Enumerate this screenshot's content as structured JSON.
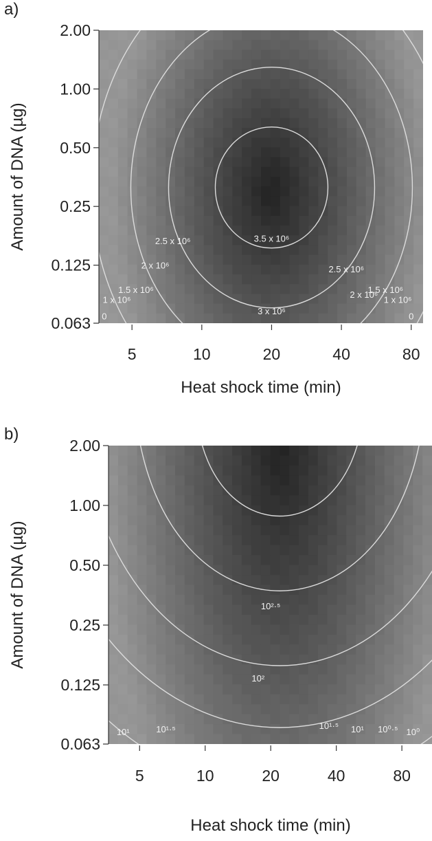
{
  "chart_data": [
    {
      "panel_label": "a)",
      "type": "heatmap",
      "xlabel": "Heat shock time (min)",
      "ylabel": "Amount of DNA (µg)",
      "x_scale": "log",
      "y_scale": "log",
      "x_ticks": [
        5,
        10,
        20,
        40,
        80
      ],
      "x_tick_labels": [
        "5",
        "10",
        "20",
        "40",
        "80"
      ],
      "y_ticks": [
        0.063,
        0.125,
        0.25,
        0.5,
        1.0,
        2.0
      ],
      "y_tick_labels": [
        "0.063",
        "0.125",
        "0.25",
        "0.50",
        "1.00",
        "2.00"
      ],
      "xlim": [
        3.6,
        90
      ],
      "ylim": [
        0.063,
        2.0
      ],
      "surface_peak": {
        "x": 20,
        "y": 0.3
      },
      "contour_labels": [
        {
          "text": "0",
          "x": 3.8,
          "y": 0.066
        },
        {
          "text": "1 x 10⁶",
          "x": 4.3,
          "y": 0.08
        },
        {
          "text": "1.5 x 10⁶",
          "x": 5.2,
          "y": 0.09
        },
        {
          "text": "2 x 10⁶",
          "x": 6.3,
          "y": 0.12
        },
        {
          "text": "2.5 x 10⁶",
          "x": 7.5,
          "y": 0.16
        },
        {
          "text": "3 x 10⁶",
          "x": 20,
          "y": 0.07
        },
        {
          "text": "3.5 x 10⁶",
          "x": 20,
          "y": 0.165
        },
        {
          "text": "2.5 x 10⁶",
          "x": 42,
          "y": 0.115
        },
        {
          "text": "2 x 10⁶",
          "x": 50,
          "y": 0.085
        },
        {
          "text": "1.5 x 10⁶",
          "x": 62,
          "y": 0.09
        },
        {
          "text": "1 x 10⁶",
          "x": 70,
          "y": 0.08
        },
        {
          "text": "0",
          "x": 80,
          "y": 0.066
        }
      ]
    },
    {
      "panel_label": "b)",
      "type": "heatmap",
      "xlabel": "Heat shock time (min)",
      "ylabel": "Amount of DNA (µg)",
      "x_scale": "log",
      "y_scale": "log",
      "x_ticks": [
        5,
        10,
        20,
        40,
        80
      ],
      "x_tick_labels": [
        "5",
        "10",
        "20",
        "40",
        "80"
      ],
      "y_ticks": [
        0.063,
        0.125,
        0.25,
        0.5,
        1.0,
        2.0
      ],
      "y_tick_labels": [
        "0.063",
        "0.125",
        "0.25",
        "0.50",
        "1.00",
        "2.00"
      ],
      "xlim": [
        3.6,
        110
      ],
      "ylim": [
        0.063,
        2.0
      ],
      "surface_peak": {
        "x": 22,
        "y": 2.0
      },
      "contour_labels": [
        {
          "text": "10¹",
          "x": 4.2,
          "y": 0.07
        },
        {
          "text": "10¹·⁵",
          "x": 6.6,
          "y": 0.072
        },
        {
          "text": "10²",
          "x": 17.5,
          "y": 0.13
        },
        {
          "text": "10²·⁵",
          "x": 20,
          "y": 0.3
        },
        {
          "text": "10¹·⁵",
          "x": 37,
          "y": 0.075
        },
        {
          "text": "10¹",
          "x": 50,
          "y": 0.072
        },
        {
          "text": "10⁰·⁵",
          "x": 69,
          "y": 0.072
        },
        {
          "text": "10⁰",
          "x": 90,
          "y": 0.07
        }
      ]
    }
  ]
}
